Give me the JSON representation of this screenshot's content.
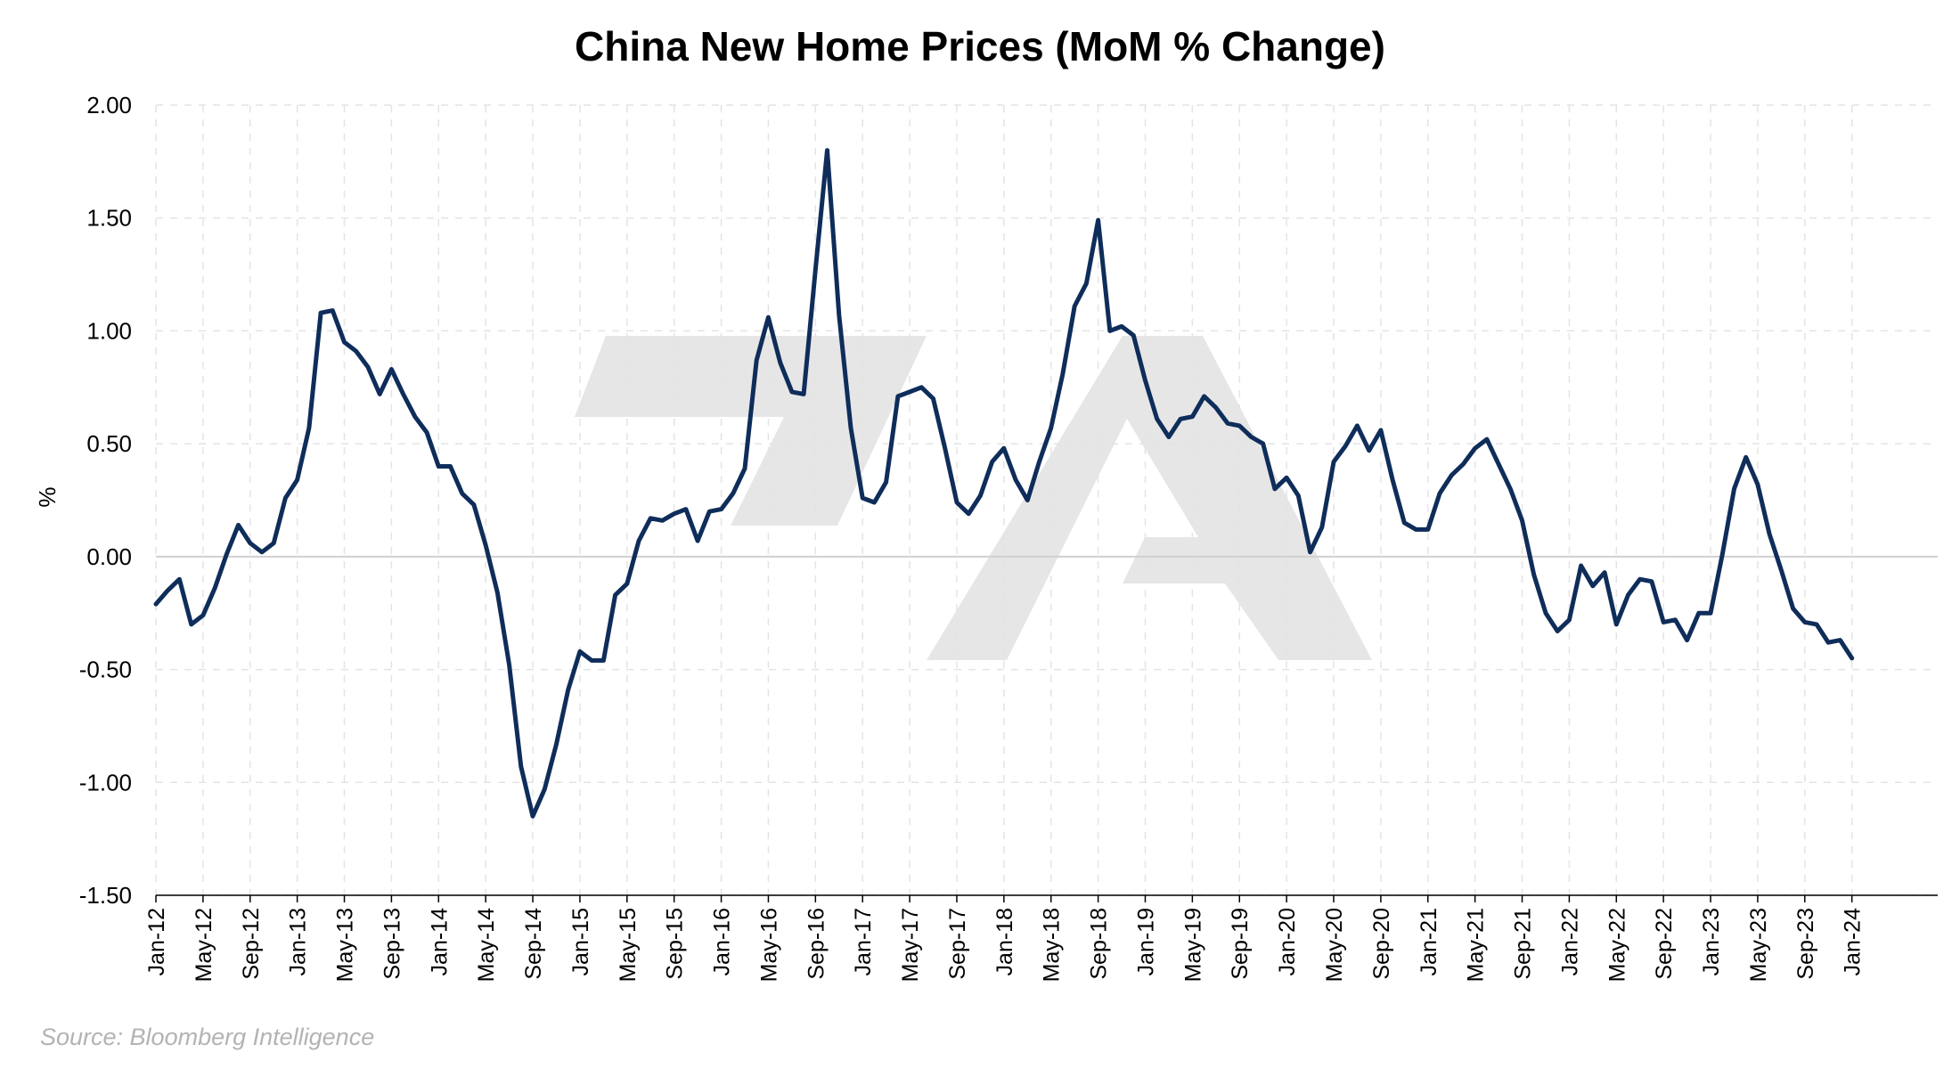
{
  "chart_data": {
    "type": "line",
    "title": "China New Home Prices (MoM % Change)",
    "ylabel": "%",
    "xlabel": "",
    "ylim": [
      -1.5,
      2.0
    ],
    "yticks": [
      "2.00",
      "1.50",
      "1.00",
      "0.50",
      "0.00",
      "-0.50",
      "-1.00",
      "-1.50"
    ],
    "ytick_values": [
      2.0,
      1.5,
      1.0,
      0.5,
      0.0,
      -0.5,
      -1.0,
      -1.5
    ],
    "xticks": [
      "Jan-12",
      "May-12",
      "Sep-12",
      "Jan-13",
      "May-13",
      "Sep-13",
      "Jan-14",
      "May-14",
      "Sep-14",
      "Jan-15",
      "May-15",
      "Sep-15",
      "Jan-16",
      "May-16",
      "Sep-16",
      "Jan-17",
      "May-17",
      "Sep-17",
      "Jan-18",
      "May-18",
      "Sep-18",
      "Jan-19",
      "May-19",
      "Sep-19",
      "Jan-20",
      "May-20",
      "Sep-20",
      "Jan-21",
      "May-21",
      "Sep-21",
      "Jan-22",
      "May-22",
      "Sep-22",
      "Jan-23",
      "May-23",
      "Sep-23",
      "Jan-24"
    ],
    "grid": true,
    "start": "Jan-12",
    "series": [
      {
        "color": "#0f2d5a",
        "values": [
          -0.21,
          -0.15,
          -0.1,
          -0.3,
          -0.26,
          -0.14,
          0.01,
          0.14,
          0.06,
          0.02,
          0.06,
          0.26,
          0.34,
          0.57,
          1.08,
          1.09,
          0.95,
          0.91,
          0.84,
          0.72,
          0.83,
          0.72,
          0.62,
          0.55,
          0.4,
          0.4,
          0.28,
          0.23,
          0.05,
          -0.16,
          -0.48,
          -0.93,
          -1.15,
          -1.03,
          -0.83,
          -0.59,
          -0.42,
          -0.46,
          -0.46,
          -0.17,
          -0.12,
          0.07,
          0.17,
          0.16,
          0.19,
          0.21,
          0.07,
          0.2,
          0.21,
          0.28,
          0.39,
          0.87,
          1.06,
          0.86,
          0.73,
          0.72,
          1.27,
          1.8,
          1.07,
          0.57,
          0.26,
          0.24,
          0.33,
          0.71,
          0.73,
          0.75,
          0.7,
          0.48,
          0.24,
          0.19,
          0.27,
          0.42,
          0.48,
          0.34,
          0.25,
          0.42,
          0.57,
          0.81,
          1.11,
          1.21,
          1.49,
          1.0,
          1.02,
          0.98,
          0.78,
          0.61,
          0.53,
          0.61,
          0.62,
          0.71,
          0.66,
          0.59,
          0.58,
          0.53,
          0.5,
          0.3,
          0.35,
          0.27,
          0.02,
          0.13,
          0.42,
          0.49,
          0.58,
          0.47,
          0.56,
          0.34,
          0.15,
          0.12,
          0.12,
          0.28,
          0.36,
          0.41,
          0.48,
          0.52,
          0.41,
          0.3,
          0.16,
          -0.08,
          -0.25,
          -0.33,
          -0.28,
          -0.04,
          -0.13,
          -0.07,
          -0.3,
          -0.17,
          -0.1,
          -0.11,
          -0.29,
          -0.28,
          -0.37,
          -0.25,
          -0.25,
          0.01,
          0.3,
          0.44,
          0.32,
          0.1,
          -0.06,
          -0.23,
          -0.29,
          -0.3,
          -0.38,
          -0.37,
          -0.45
        ]
      }
    ]
  },
  "source": "Source: Bloomberg Intelligence"
}
